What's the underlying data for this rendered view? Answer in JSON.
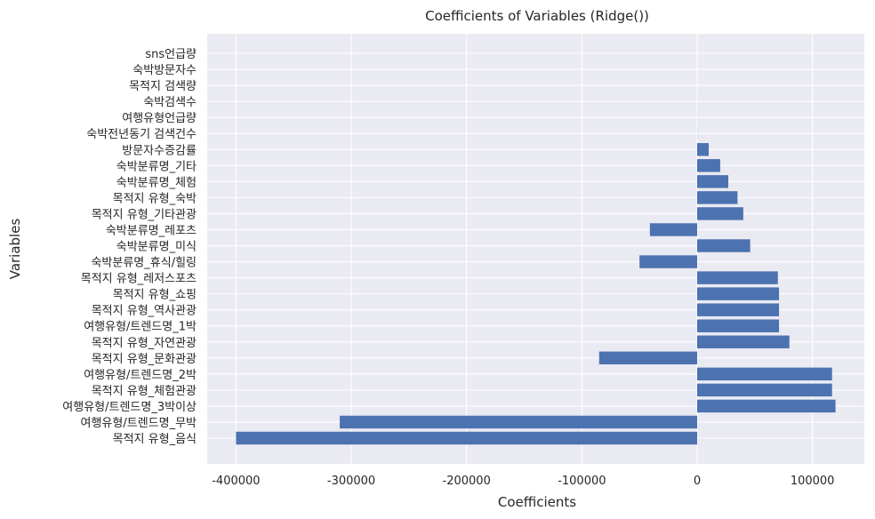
{
  "chart_data": {
    "type": "bar",
    "orientation": "horizontal",
    "title": "Coefficients of Variables (Ridge())",
    "xlabel": "Coefficients",
    "ylabel": "Variables",
    "xlim": [
      -425000,
      145000
    ],
    "xticks": [
      -400000,
      -300000,
      -200000,
      -100000,
      0,
      100000
    ],
    "xtick_labels": [
      "-400000",
      "-300000",
      "-200000",
      "-100000",
      "0",
      "100000"
    ],
    "grid": true,
    "bar_color": "#4c72b0",
    "background_color": "#eaeaf2",
    "categories": [
      "목적지 유형_음식",
      "여행유형/트렌드명_무박",
      "여행유형/트렌드명_3박이상",
      "목적지 유형_체험관광",
      "여행유형/트렌드명_2박",
      "목적지 유형_문화관광",
      "목적지 유형_자연관광",
      "여행유형/트렌드명_1박",
      "목적지 유형_역사관광",
      "목적지 유형_쇼핑",
      "목적지 유형_레저스포츠",
      "숙박분류명_휴식/힐링",
      "숙박분류명_미식",
      "숙박분류명_레포츠",
      "목적지 유형_기타관광",
      "목적지 유형_숙박",
      "숙박분류명_체험",
      "숙박분류명_기타",
      "방문자수증감률",
      "숙박전년동기 검색건수",
      "여행유형언급량",
      "숙박검색수",
      "목적지 검색량",
      "숙박방문자수",
      "sns언급량"
    ],
    "values": [
      -400000,
      -310000,
      120000,
      117000,
      117000,
      -85000,
      80000,
      71000,
      71000,
      71000,
      70000,
      -50000,
      46000,
      -41000,
      40000,
      35000,
      27000,
      20000,
      10000,
      100,
      50,
      30,
      20,
      10,
      5
    ]
  }
}
